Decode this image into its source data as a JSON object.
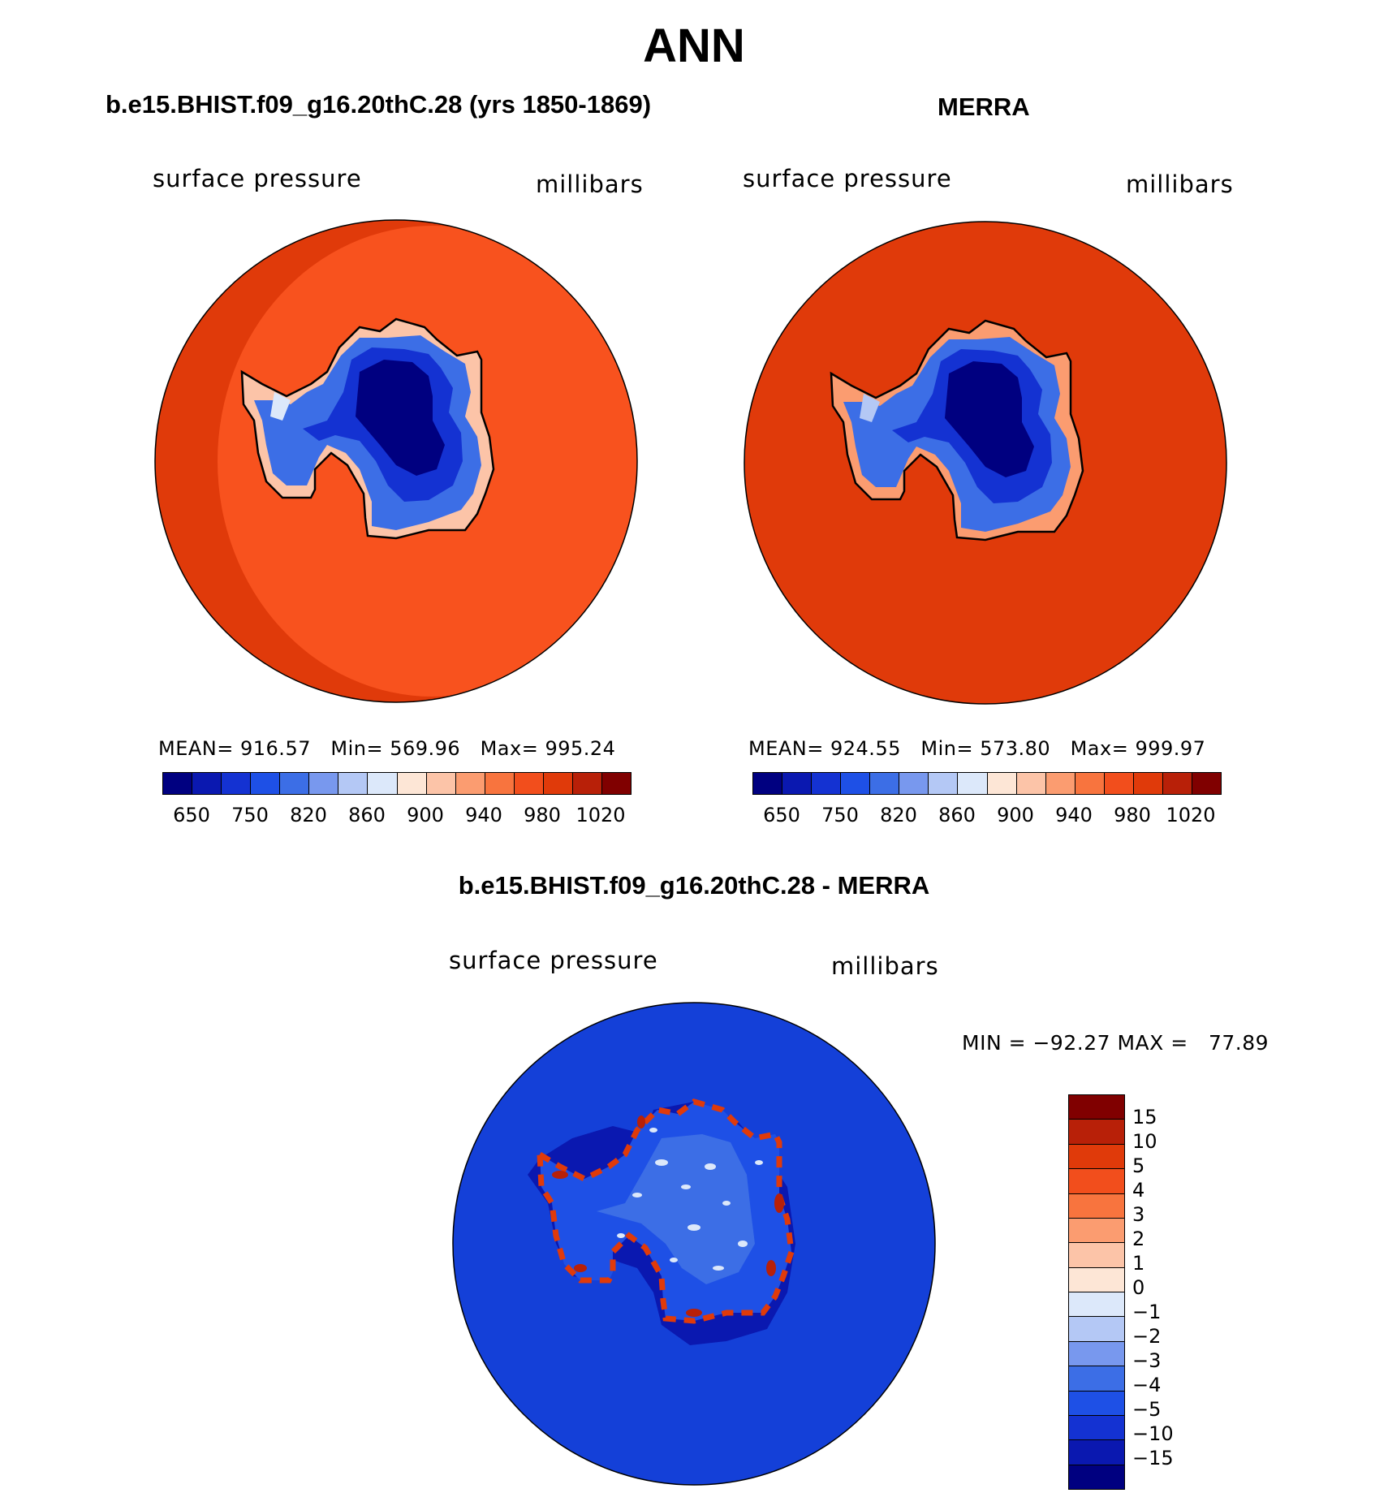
{
  "title": "ANN",
  "panels": [
    {
      "title": "b.e15.BHIST.f09_g16.20thC.28 (yrs 1850-1869)",
      "variable": "surface pressure",
      "units": "millibars",
      "stats": {
        "mean_label": "MEAN=",
        "mean": "916.57",
        "min_label": "Min=",
        "min": "569.96",
        "max_label": "Max=",
        "max": "995.24"
      },
      "colorbar_ticks": [
        "650",
        "750",
        "820",
        "860",
        "900",
        "940",
        "980",
        "1020"
      ]
    },
    {
      "title": "MERRA",
      "variable": "surface pressure",
      "units": "millibars",
      "stats": {
        "mean_label": "MEAN=",
        "mean": "924.55",
        "min_label": "Min=",
        "min": "573.80",
        "max_label": "Max=",
        "max": "999.97"
      },
      "colorbar_ticks": [
        "650",
        "750",
        "820",
        "860",
        "900",
        "940",
        "980",
        "1020"
      ]
    }
  ],
  "diff_panel": {
    "title": "b.e15.BHIST.f09_g16.20thC.28 - MERRA",
    "variable": "surface pressure",
    "units": "millibars",
    "minmax_text": "MIN = −92.27 MAX =   77.89",
    "colorbar_ticks": [
      "15",
      "10",
      "5",
      "4",
      "3",
      "2",
      "1",
      "0",
      "−1",
      "−2",
      "−3",
      "−4",
      "−5",
      "−10",
      "−15"
    ]
  },
  "colors": {
    "abs_scale": [
      "#000080",
      "#0a18b0",
      "#1432d2",
      "#1e50e6",
      "#3c6ee6",
      "#7898ee",
      "#b4c8f5",
      "#dce8fa",
      "#fde6d6",
      "#fcc4a8",
      "#fb9c70",
      "#f8743e",
      "#f24e1c",
      "#e03a0a",
      "#b82008",
      "#800000"
    ],
    "diff_scale": [
      "#800000",
      "#b82008",
      "#e03a0a",
      "#f24e1c",
      "#f8743e",
      "#fb9c70",
      "#fcc4a8",
      "#fde6d6",
      "#dce8fa",
      "#b4c8f5",
      "#7898ee",
      "#3c6ee6",
      "#1e50e6",
      "#1432d2",
      "#0a18b0",
      "#000080"
    ],
    "ocean_model_outer": "#e03a0a",
    "ocean_model_inner": "#f8521e",
    "ocean_merra": "#e03a0a",
    "diff_ocean": "#1440d8",
    "land_high": "#000080",
    "coastline": "#000000"
  }
}
